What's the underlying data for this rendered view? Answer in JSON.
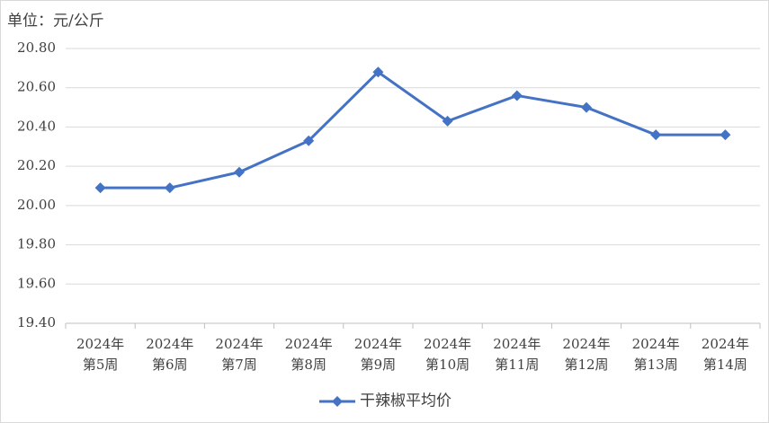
{
  "chart_data": {
    "type": "line",
    "annotation": "单位：元/公斤",
    "categories": [
      [
        "2024年",
        "第5周"
      ],
      [
        "2024年",
        "第6周"
      ],
      [
        "2024年",
        "第7周"
      ],
      [
        "2024年",
        "第8周"
      ],
      [
        "2024年",
        "第9周"
      ],
      [
        "2024年",
        "第10周"
      ],
      [
        "2024年",
        "第11周"
      ],
      [
        "2024年",
        "第12周"
      ],
      [
        "2024年",
        "第13周"
      ],
      [
        "2024年",
        "第14周"
      ]
    ],
    "series": [
      {
        "name": "干辣椒平均价",
        "color": "#4472c4",
        "values": [
          20.09,
          20.09,
          20.17,
          20.33,
          20.68,
          20.43,
          20.56,
          20.5,
          20.36,
          20.36
        ]
      }
    ],
    "ylim": [
      19.4,
      20.8
    ],
    "yticks": [
      {
        "value": 19.4,
        "label": "19.40"
      },
      {
        "value": 19.6,
        "label": "19.60"
      },
      {
        "value": 19.8,
        "label": "19.80"
      },
      {
        "value": 20.0,
        "label": "20.00"
      },
      {
        "value": 20.2,
        "label": "20.20"
      },
      {
        "value": 20.4,
        "label": "20.40"
      },
      {
        "value": 20.6,
        "label": "20.60"
      },
      {
        "value": 20.8,
        "label": "20.80"
      }
    ],
    "grid": true,
    "legend": "bottom"
  }
}
